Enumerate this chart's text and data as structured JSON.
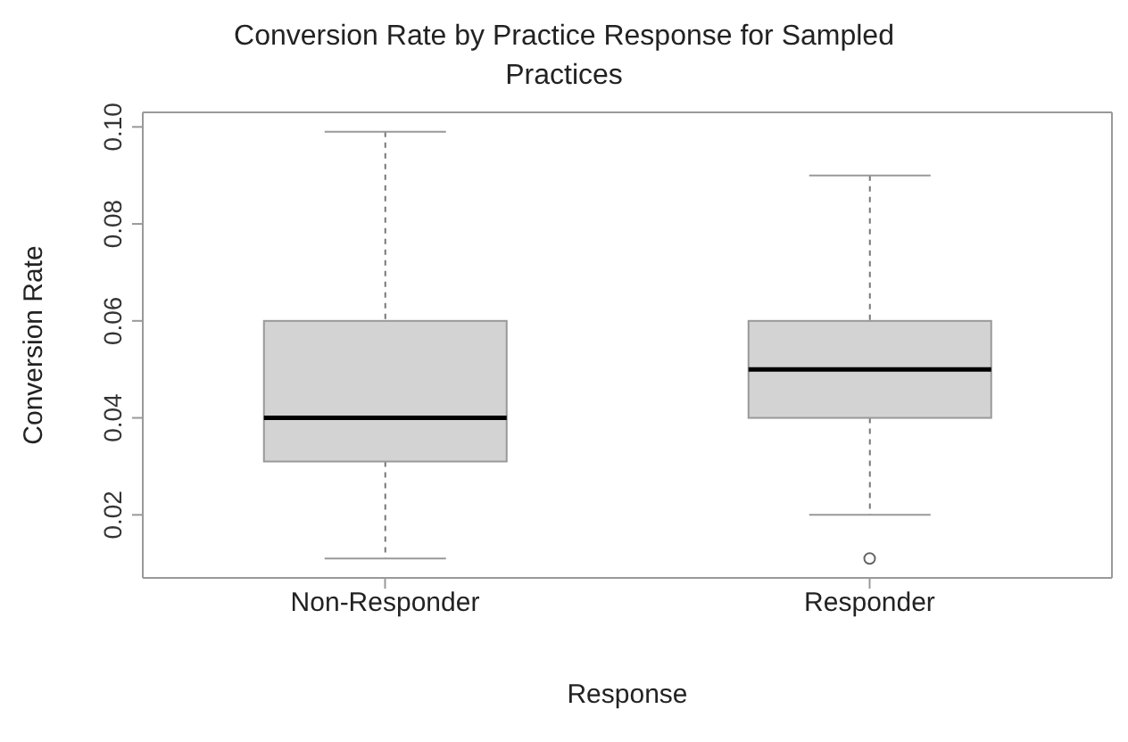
{
  "chart_data": {
    "type": "box",
    "title": "Conversion Rate by Practice Response for Sampled Practices",
    "xlabel": "Response",
    "ylabel": "Conversion Rate",
    "categories": [
      "Non-Responder",
      "Responder"
    ],
    "boxes": [
      {
        "low": 0.011,
        "q1": 0.031,
        "median": 0.04,
        "q3": 0.06,
        "high": 0.099
      },
      {
        "low": 0.02,
        "q1": 0.04,
        "median": 0.05,
        "q3": 0.06,
        "high": 0.09,
        "outliers": [
          0.011
        ]
      }
    ],
    "color": "#d3d3d3",
    "ylim": [
      0.007,
      0.103
    ],
    "yticks": [
      {
        "value": 0.02,
        "label": "0.02"
      },
      {
        "value": 0.04,
        "label": "0.04"
      },
      {
        "value": 0.06,
        "label": "0.06"
      },
      {
        "value": 0.08,
        "label": "0.08"
      },
      {
        "value": 0.1,
        "label": "0.10"
      }
    ]
  }
}
